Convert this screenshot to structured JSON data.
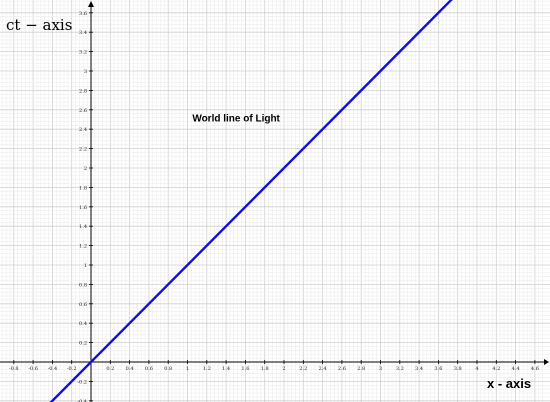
{
  "chart_data": {
    "type": "line",
    "xlabel": "x - axis",
    "ylabel": "ct −  axis",
    "xlim": [
      -0.95,
      4.7
    ],
    "ylim": [
      -0.42,
      3.72
    ],
    "grid": true,
    "x_ticks": [
      -0.8,
      -0.6,
      -0.4,
      -0.2,
      0.2,
      0.4,
      0.6,
      0.8,
      1,
      1.2,
      1.4,
      1.6,
      1.8,
      2,
      2.2,
      2.4,
      2.6,
      2.8,
      3,
      3.2,
      3.4,
      3.6,
      3.8,
      4,
      4.2,
      4.4,
      4.6
    ],
    "y_ticks": [
      -0.4,
      -0.2,
      0.2,
      0.4,
      0.6,
      0.8,
      1,
      1.2,
      1.4,
      1.6,
      1.8,
      2,
      2.2,
      2.4,
      2.6,
      2.8,
      3,
      3.2,
      3.4,
      3.6
    ],
    "series": [
      {
        "x": [
          -0.45,
          3.75
        ],
        "y": [
          -0.45,
          3.75
        ],
        "color": "#1010dd"
      }
    ],
    "annotations": [
      {
        "text": "World line of Light",
        "x": 1.05,
        "y": 2.48
      }
    ]
  }
}
